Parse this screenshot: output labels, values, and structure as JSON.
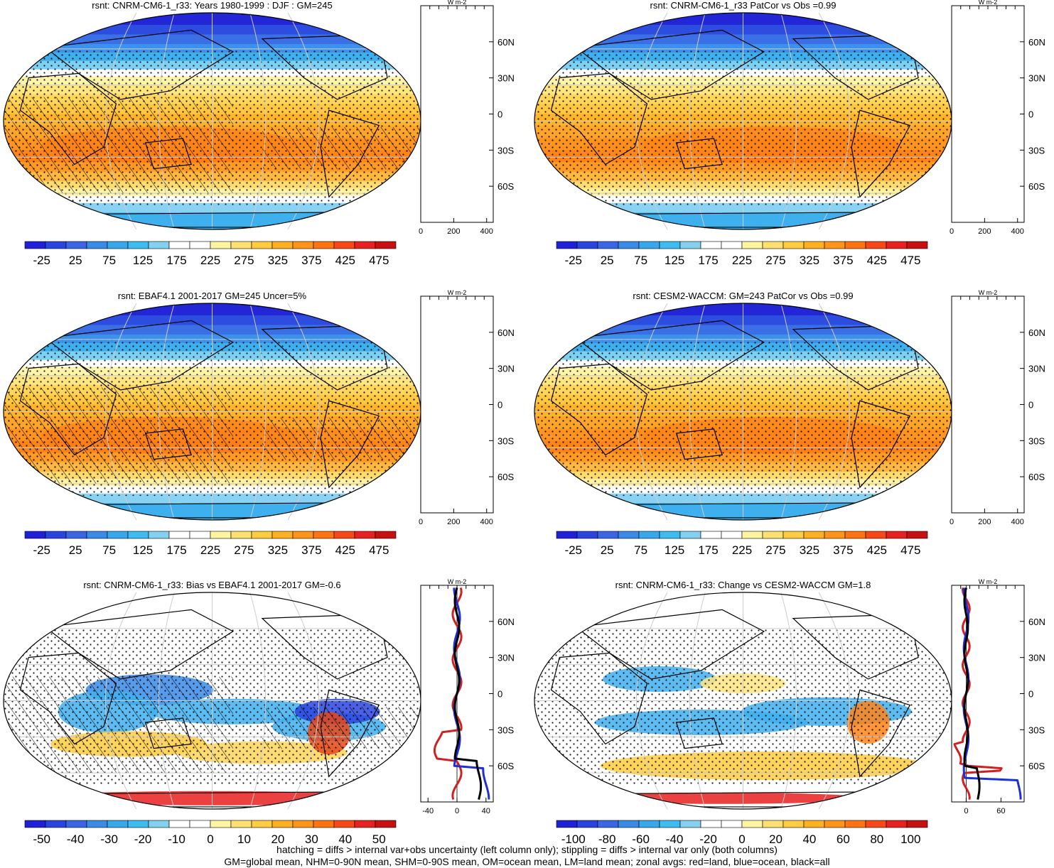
{
  "colors": {
    "land_line": "#d22020",
    "ocean_line": "#1f2fd6",
    "all_line": "#000000",
    "grid": "#cccccc",
    "abs_scale": [
      "#2020d8",
      "#2a44e0",
      "#3a66e6",
      "#3a8ae8",
      "#38a8ec",
      "#3cbcf0",
      "#84d0f0",
      "#ffffff",
      "#ffffff",
      "#fff4a0",
      "#ffe070",
      "#ffcc40",
      "#ffb020",
      "#ff9418",
      "#ff7410",
      "#f84818",
      "#e82020",
      "#c81010"
    ],
    "bias_scale": [
      "#2020d8",
      "#2a44e0",
      "#3a66e6",
      "#3a8ae8",
      "#38a8ec",
      "#3cbcf0",
      "#84d0f0",
      "#ffffff",
      "#ffffff",
      "#fff4a0",
      "#ffe070",
      "#ffcc40",
      "#ffb020",
      "#ff9418",
      "#ff7410",
      "#f84818",
      "#e82020",
      "#c81010"
    ]
  },
  "panels": [
    {
      "title": "rsnt: CNRM-CM6-1_r33: Years 1980-1999 : DJF : GM=245",
      "colorbar_labels": [
        "-25",
        "25",
        "75",
        "125",
        "175",
        "225",
        "275",
        "325",
        "375",
        "425",
        "475"
      ],
      "profile_xticks": [
        "0",
        "200",
        "400"
      ],
      "profile_xvals": [
        0,
        200,
        400
      ],
      "profile_xrange": [
        0,
        440
      ],
      "profile_unit": "W m-2",
      "profile_lat_labels": [
        "60N",
        "30N",
        "0",
        "30S",
        "60S"
      ],
      "hatching": true
    },
    {
      "title": "rsnt: CNRM-CM6-1_r33 PatCor vs Obs =0.99",
      "colorbar_labels": [
        "-25",
        "25",
        "75",
        "125",
        "175",
        "225",
        "275",
        "325",
        "375",
        "425",
        "475"
      ],
      "profile_xticks": [
        "0",
        "200",
        "400"
      ],
      "profile_xvals": [
        0,
        200,
        400
      ],
      "profile_xrange": [
        0,
        440
      ],
      "profile_unit": "W m-2",
      "profile_lat_labels": [
        "60N",
        "30N",
        "0",
        "30S",
        "60S"
      ],
      "hatching": false
    },
    {
      "title": "rsnt: EBAF4.1 2001-2017 GM=245 Uncer=5%",
      "colorbar_labels": [
        "-25",
        "25",
        "75",
        "125",
        "175",
        "225",
        "275",
        "325",
        "375",
        "425",
        "475"
      ],
      "profile_xticks": [
        "0",
        "200",
        "400"
      ],
      "profile_xvals": [
        0,
        200,
        400
      ],
      "profile_xrange": [
        0,
        440
      ],
      "profile_unit": "W m-2",
      "profile_lat_labels": [
        "60N",
        "30N",
        "0",
        "30S",
        "60S"
      ],
      "hatching": true
    },
    {
      "title": "rsnt: CESM2-WACCM: GM=243 PatCor vs Obs =0.99",
      "colorbar_labels": [
        "-25",
        "25",
        "75",
        "125",
        "175",
        "225",
        "275",
        "325",
        "375",
        "425",
        "475"
      ],
      "profile_xticks": [
        "0",
        "200",
        "400"
      ],
      "profile_xvals": [
        0,
        200,
        400
      ],
      "profile_xrange": [
        0,
        440
      ],
      "profile_unit": "W m-2",
      "profile_lat_labels": [
        "60N",
        "30N",
        "0",
        "30S",
        "60S"
      ],
      "hatching": false
    },
    {
      "title": "rsnt: CNRM-CM6-1_r33: Bias vs EBAF4.1 2001-2017 GM=-0.6",
      "colorbar_labels": [
        "-50",
        "-40",
        "-30",
        "-20",
        "-10",
        "0",
        "10",
        "20",
        "30",
        "40",
        "50"
      ],
      "profile_xticks": [
        "-40",
        "0",
        "40"
      ],
      "profile_xvals": [
        -40,
        0,
        40
      ],
      "profile_xrange": [
        -50,
        50
      ],
      "profile_unit": "W m-2",
      "profile_lat_labels": [
        "60N",
        "30N",
        "0",
        "30S",
        "60S"
      ],
      "hatching": true
    },
    {
      "title": "rsnt: CNRM-CM6-1_r33: Change vs CESM2-WACCM GM=1.8",
      "colorbar_labels": [
        "-100",
        "-80",
        "-60",
        "-40",
        "-20",
        "0",
        "20",
        "40",
        "60",
        "80",
        "100"
      ],
      "profile_xticks": [
        "0",
        "60"
      ],
      "profile_xvals": [
        0,
        60
      ],
      "profile_xrange": [
        -25,
        100
      ],
      "profile_unit": "W m-2",
      "profile_lat_labels": [
        "60N",
        "30N",
        "0",
        "30S",
        "60S"
      ],
      "hatching": false
    }
  ],
  "footer": {
    "line1": "hatching = diffs > internal var+obs uncertainty (left column only); stippling = diffs > internal var only (both columns)",
    "line2": "GM=global mean, NHM=0-90N mean, SHM=0-90S mean, OM=ocean mean, LM=land mean; zonal avgs: red=land, blue=ocean, black=all"
  }
}
